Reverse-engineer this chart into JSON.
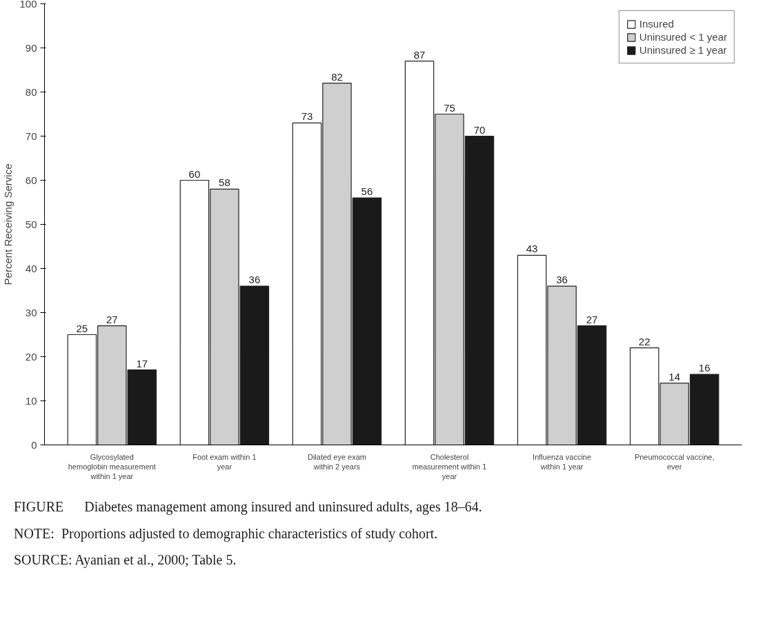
{
  "chart_data": {
    "type": "bar",
    "ylabel": "Percent Receiving Service",
    "categories": [
      "Glycosylated hemoglobin measurement within 1 year",
      "Foot exam within 1 year",
      "Dilated eye exam within 2 years",
      "Cholesterol measurement within 1 year",
      "Influenza vaccine within 1 year",
      "Pneumococcal vaccine, ever"
    ],
    "series": [
      {
        "name": "Insured",
        "color": "#ffffff",
        "values": [
          25,
          60,
          73,
          87,
          43,
          22
        ]
      },
      {
        "name": "Uninsured < 1 year",
        "color": "#cfcfcf",
        "values": [
          27,
          58,
          82,
          75,
          36,
          14
        ]
      },
      {
        "name": "Uninsured ≥ 1 year",
        "color": "#1a1a1a",
        "values": [
          17,
          36,
          56,
          70,
          27,
          16
        ]
      }
    ],
    "ylim": [
      0,
      100
    ],
    "yticks": [
      0,
      10,
      20,
      30,
      40,
      50,
      60,
      70,
      80,
      90,
      100
    ],
    "grid": false,
    "legend": "top right",
    "data_labels": true,
    "annotations": [
      "FIGURE      Diabetes management among insured and uninsured adults, ages 18–64.",
      "NOTE:  Proportions adjusted to demographic characteristics of study cohort.",
      "SOURCE: Ayanian et al., 2000; Table 5."
    ]
  }
}
